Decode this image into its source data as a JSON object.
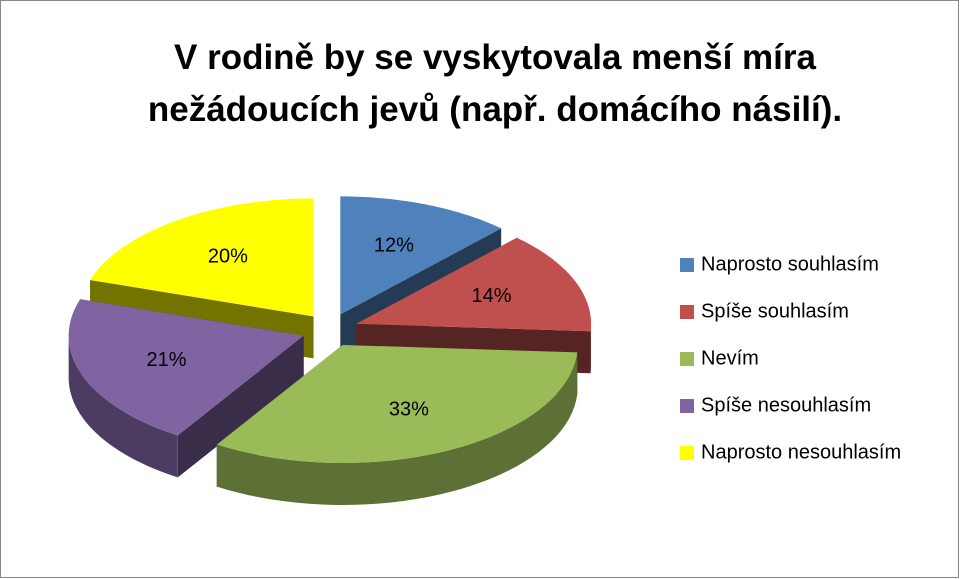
{
  "chart_data": {
    "type": "pie",
    "title": "V rodině by se vyskytovala menší míra nežádoucích jevů (např. domácího násilí).",
    "categories": [
      "Naprosto souhlasím",
      "Spíše souhlasím",
      "Nevím",
      "Spíše nesouhlasím",
      "Naprosto nesouhlasím"
    ],
    "values": [
      12,
      14,
      33,
      21,
      20
    ],
    "value_labels": [
      "12%",
      "14%",
      "33%",
      "21%",
      "20%"
    ],
    "colors": [
      "#4f81bd",
      "#c0504d",
      "#9bbb59",
      "#8064a2",
      "#ffff00"
    ],
    "legend": "right"
  }
}
